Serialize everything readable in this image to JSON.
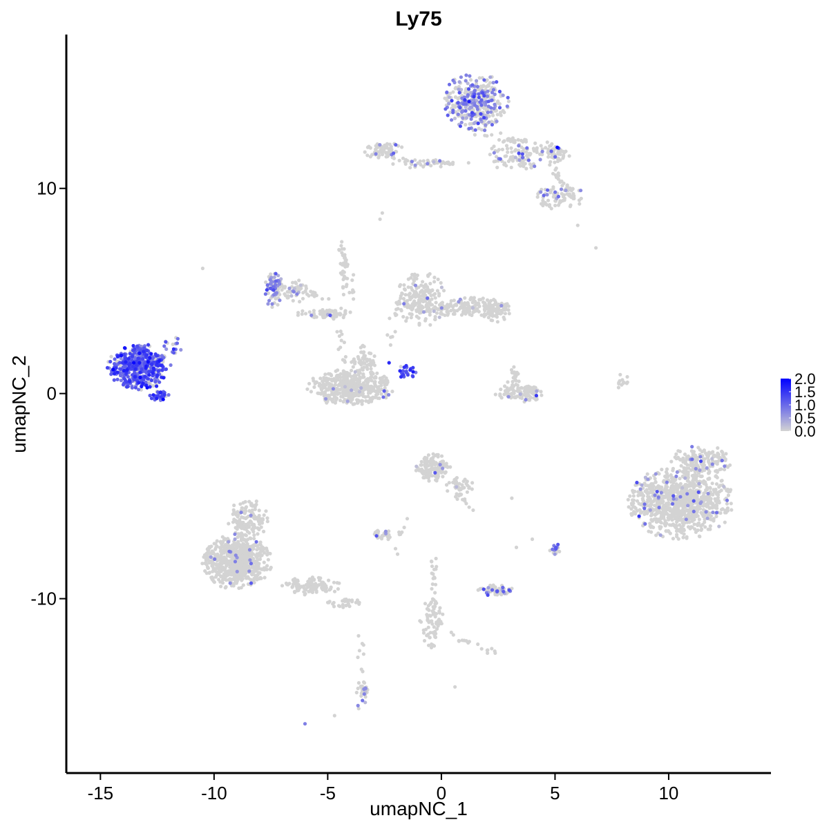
{
  "chart_data": {
    "type": "scatter",
    "title": "Ly75",
    "xlabel": "umapNC_1",
    "ylabel": "umapNC_2",
    "xlim": [
      -16.5,
      14.5
    ],
    "ylim": [
      -18.5,
      17.5
    ],
    "x_ticks": [
      -15,
      -10,
      -5,
      0,
      5,
      10
    ],
    "x_tick_labels": [
      "-15",
      "-10",
      "-5",
      "0",
      "5",
      "10"
    ],
    "y_ticks": [
      10,
      0,
      -10
    ],
    "y_tick_labels": [
      "10",
      "0",
      "-10"
    ],
    "grid": false,
    "point_color_low": "#d3d3d3",
    "point_color_high": "#0000ff",
    "legend": {
      "position": "right",
      "min": 0.0,
      "max": 2.0,
      "ticks": [
        2.0,
        1.5,
        1.0,
        0.5,
        0.0
      ],
      "tick_labels": [
        "2.0",
        "1.5",
        "1.0",
        "0.5",
        "0.0"
      ]
    },
    "clusters": [
      {
        "cx": -13.3,
        "cy": 1.3,
        "rx": 1.25,
        "ry": 1.0,
        "n": 520,
        "expr_frac": 0.85,
        "expr_mean": 1.1
      },
      {
        "cx": -12.4,
        "cy": -0.1,
        "rx": 0.4,
        "ry": 0.25,
        "n": 35,
        "expr_frac": 0.85,
        "expr_mean": 1.2
      },
      {
        "cx": -11.8,
        "cy": 2.3,
        "rx": 0.4,
        "ry": 0.4,
        "n": 16,
        "expr_frac": 0.7,
        "expr_mean": 1.0
      },
      {
        "cx": -7.4,
        "cy": 5.2,
        "rx": 0.35,
        "ry": 0.9,
        "n": 70,
        "expr_frac": 0.6,
        "expr_mean": 0.7
      },
      {
        "cx": -6.6,
        "cy": 5.0,
        "rx": 0.9,
        "ry": 0.5,
        "n": 60,
        "expr_frac": 0.1,
        "expr_mean": 0.5
      },
      {
        "cx": -5.0,
        "cy": 3.9,
        "rx": 1.3,
        "ry": 0.25,
        "n": 70,
        "expr_frac": 0.02,
        "expr_mean": 0.5
      },
      {
        "cx": -4.3,
        "cy": 6.0,
        "rx": 0.15,
        "ry": 1.1,
        "n": 25,
        "expr_frac": 0.0,
        "expr_mean": 0.5
      },
      {
        "cx": -4.0,
        "cy": 0.3,
        "rx": 1.7,
        "ry": 0.8,
        "n": 440,
        "expr_frac": 0.02,
        "expr_mean": 0.5
      },
      {
        "cx": -3.4,
        "cy": 1.6,
        "rx": 0.5,
        "ry": 0.7,
        "n": 55,
        "expr_frac": 0.0,
        "expr_mean": 0.5
      },
      {
        "cx": -1.6,
        "cy": 1.0,
        "rx": 0.5,
        "ry": 0.35,
        "n": 25,
        "expr_frac": 0.9,
        "expr_mean": 1.4
      },
      {
        "cx": -0.9,
        "cy": 4.6,
        "rx": 1.0,
        "ry": 1.2,
        "n": 200,
        "expr_frac": 0.04,
        "expr_mean": 0.6
      },
      {
        "cx": 1.2,
        "cy": 4.2,
        "rx": 1.6,
        "ry": 0.45,
        "n": 170,
        "expr_frac": 0.03,
        "expr_mean": 0.6
      },
      {
        "cx": 2.4,
        "cy": 4.0,
        "rx": 0.6,
        "ry": 0.5,
        "n": 60,
        "expr_frac": 0.0,
        "expr_mean": 0.5
      },
      {
        "cx": 1.5,
        "cy": 14.2,
        "rx": 1.3,
        "ry": 1.3,
        "n": 360,
        "expr_frac": 0.45,
        "expr_mean": 0.75
      },
      {
        "cx": 3.3,
        "cy": 11.6,
        "rx": 1.2,
        "ry": 0.7,
        "n": 100,
        "expr_frac": 0.08,
        "expr_mean": 0.8
      },
      {
        "cx": 5.0,
        "cy": 11.7,
        "rx": 0.6,
        "ry": 0.4,
        "n": 40,
        "expr_frac": 0.1,
        "expr_mean": 1.0
      },
      {
        "cx": 5.2,
        "cy": 9.6,
        "rx": 1.0,
        "ry": 0.55,
        "n": 80,
        "expr_frac": 0.1,
        "expr_mean": 0.8
      },
      {
        "cx": -2.5,
        "cy": 11.8,
        "rx": 0.8,
        "ry": 0.4,
        "n": 70,
        "expr_frac": 0.05,
        "expr_mean": 0.7
      },
      {
        "cx": -0.8,
        "cy": 11.2,
        "rx": 1.0,
        "ry": 0.25,
        "n": 25,
        "expr_frac": 0.3,
        "expr_mean": 0.8
      },
      {
        "cx": 3.5,
        "cy": 0.0,
        "rx": 1.0,
        "ry": 0.45,
        "n": 120,
        "expr_frac": 0.03,
        "expr_mean": 0.7
      },
      {
        "cx": 3.2,
        "cy": 0.8,
        "rx": 0.3,
        "ry": 0.6,
        "n": 20,
        "expr_frac": 0.1,
        "expr_mean": 0.6
      },
      {
        "cx": 10.5,
        "cy": -5.3,
        "rx": 2.1,
        "ry": 1.6,
        "n": 900,
        "expr_frac": 0.06,
        "expr_mean": 0.8
      },
      {
        "cx": 11.4,
        "cy": -3.3,
        "rx": 1.2,
        "ry": 0.7,
        "n": 160,
        "expr_frac": 0.05,
        "expr_mean": 0.8
      },
      {
        "cx": -0.4,
        "cy": -3.6,
        "rx": 0.7,
        "ry": 0.6,
        "n": 140,
        "expr_frac": 0.02,
        "expr_mean": 0.6
      },
      {
        "cx": 0.8,
        "cy": -4.5,
        "rx": 0.6,
        "ry": 0.4,
        "n": 40,
        "expr_frac": 0.05,
        "expr_mean": 0.6
      },
      {
        "cx": -2.6,
        "cy": -6.9,
        "rx": 0.4,
        "ry": 0.25,
        "n": 30,
        "expr_frac": 0.15,
        "expr_mean": 0.7
      },
      {
        "cx": 2.4,
        "cy": -9.6,
        "rx": 0.7,
        "ry": 0.25,
        "n": 60,
        "expr_frac": 0.25,
        "expr_mean": 0.8
      },
      {
        "cx": 5.0,
        "cy": -7.6,
        "rx": 0.3,
        "ry": 0.3,
        "n": 15,
        "expr_frac": 0.3,
        "expr_mean": 0.9
      },
      {
        "cx": -9.0,
        "cy": -8.2,
        "rx": 1.4,
        "ry": 1.2,
        "n": 650,
        "expr_frac": 0.02,
        "expr_mean": 0.6
      },
      {
        "cx": -8.5,
        "cy": -6.2,
        "rx": 0.8,
        "ry": 1.0,
        "n": 140,
        "expr_frac": 0.02,
        "expr_mean": 0.6
      },
      {
        "cx": -5.7,
        "cy": -9.4,
        "rx": 1.2,
        "ry": 0.4,
        "n": 110,
        "expr_frac": 0.0,
        "expr_mean": 0.6
      },
      {
        "cx": -4.3,
        "cy": -10.2,
        "rx": 0.7,
        "ry": 0.2,
        "n": 30,
        "expr_frac": 0.0,
        "expr_mean": 0.6
      },
      {
        "cx": -0.4,
        "cy": -11.2,
        "rx": 0.5,
        "ry": 1.3,
        "n": 55,
        "expr_frac": 0.03,
        "expr_mean": 0.7
      },
      {
        "cx": -3.5,
        "cy": -14.6,
        "rx": 0.3,
        "ry": 0.8,
        "n": 30,
        "expr_frac": 0.25,
        "expr_mean": 0.6
      },
      {
        "cx": 8.0,
        "cy": 0.5,
        "rx": 0.2,
        "ry": 0.6,
        "n": 12,
        "expr_frac": 0.0,
        "expr_mean": 0.5
      }
    ],
    "lines": [
      {
        "x0": 1.3,
        "y0": 12.8,
        "x1": 5.2,
        "y1": 11.9,
        "n": 35
      },
      {
        "x0": 4.7,
        "y0": 11.3,
        "x1": 5.6,
        "y1": 9.8,
        "n": 20
      },
      {
        "x0": -2.2,
        "y0": 11.3,
        "x1": 1.2,
        "y1": 11.2,
        "n": 25
      },
      {
        "x0": -4.5,
        "y0": 7.4,
        "x1": -3.8,
        "y1": 4.5,
        "n": 20
      },
      {
        "x0": -4.5,
        "y0": 3.3,
        "x1": -4.3,
        "y1": 1.5,
        "n": 12
      },
      {
        "x0": -2.2,
        "y0": 2.5,
        "x1": -2.0,
        "y1": 4.3,
        "n": 10
      },
      {
        "x0": -0.3,
        "y0": -8.0,
        "x1": -0.3,
        "y1": -12.0,
        "n": 30
      },
      {
        "x0": 0.3,
        "y0": -11.7,
        "x1": 2.4,
        "y1": -12.6,
        "n": 18
      },
      {
        "x0": -2.0,
        "y0": -7.7,
        "x1": -1.6,
        "y1": -6.0,
        "n": 8
      },
      {
        "x0": -3.5,
        "y0": -11.7,
        "x1": -3.5,
        "y1": -13.8,
        "n": 8
      },
      {
        "x0": 0.7,
        "y0": -4.8,
        "x1": 1.3,
        "y1": -5.6,
        "n": 10
      },
      {
        "x0": -5.0,
        "y0": 4.4,
        "x1": -6.0,
        "y1": 5.3,
        "n": 10
      }
    ],
    "singletons": [
      {
        "x": -10.5,
        "y": 6.1,
        "v": 0.0
      },
      {
        "x": -2.7,
        "y": 8.5,
        "v": 0.0
      },
      {
        "x": -2.6,
        "y": 8.8,
        "v": 0.0
      },
      {
        "x": 6.0,
        "y": 8.2,
        "v": 0.0
      },
      {
        "x": 6.8,
        "y": 7.1,
        "v": 0.0
      },
      {
        "x": -6.0,
        "y": -16.1,
        "v": 0.8
      },
      {
        "x": -4.7,
        "y": -15.7,
        "v": 0.0
      },
      {
        "x": 0.6,
        "y": -14.3,
        "v": 0.0
      },
      {
        "x": 3.1,
        "y": -5.1,
        "v": 0.0
      },
      {
        "x": 3.1,
        "y": -9.5,
        "v": 0.0
      },
      {
        "x": 3.3,
        "y": -7.5,
        "v": 0.0
      },
      {
        "x": 4.0,
        "y": -7.1,
        "v": 0.0
      },
      {
        "x": 5.1,
        "y": 12.0,
        "v": 2.0
      },
      {
        "x": -2.3,
        "y": 1.5,
        "v": 1.6
      }
    ]
  }
}
